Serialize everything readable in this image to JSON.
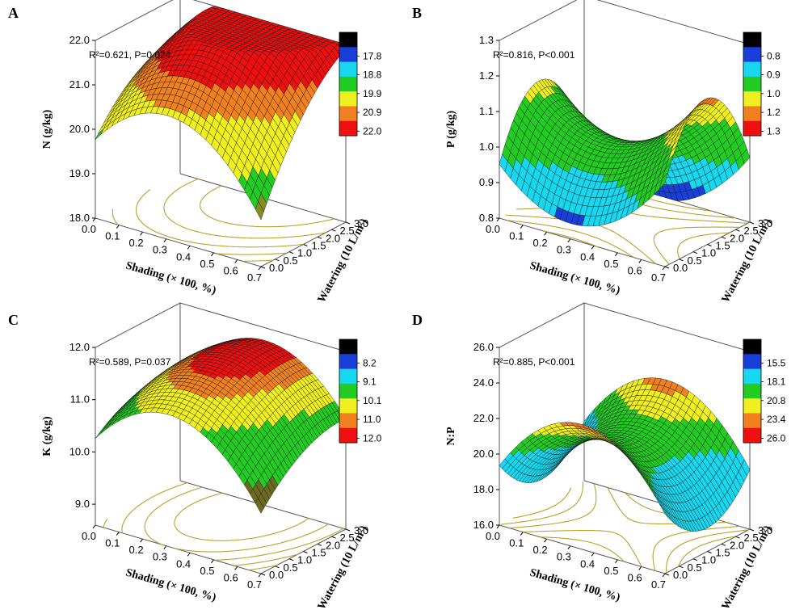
{
  "chart_data": [
    {
      "panel": "A",
      "type": "surface3d",
      "title": "",
      "stat": "R²=0.621,  P=0.024",
      "zlabel": "N (g/kg)",
      "xlabel": "Shading (× 100, %)",
      "ylabel": "Watering (10 L/m²)",
      "xlim": [
        0,
        0.7
      ],
      "ylim": [
        0,
        3
      ],
      "zlim": [
        18.0,
        22.0
      ],
      "zticks": [
        "18.0",
        "19.0",
        "20.0",
        "21.0",
        "22.0"
      ],
      "xticks": [
        "0.0",
        "0.1",
        "0.2",
        "0.3",
        "0.4",
        "0.5",
        "0.6",
        "0.7"
      ],
      "yticks": [
        "0.0",
        "0.5",
        "1.0",
        "1.5",
        "2.0",
        "2.5",
        "3.0"
      ],
      "legend_ticks": [
        "17.8",
        "18.8",
        "19.9",
        "20.9",
        "22.0"
      ],
      "legend_colors": [
        "#000000",
        "#1a3fd8",
        "#18d8f0",
        "#22cc22",
        "#f0f020",
        "#f08020",
        "#ee1010"
      ],
      "surface": {
        "c": 21.6,
        "bx": 0,
        "by": 0.45,
        "ax": -11,
        "ay": -0.2,
        "axy": 0.8,
        "x0": 0.38,
        "y0": 2.1
      },
      "surface_colors": [
        "#6b6b20",
        "#8a8a22",
        "#22cc22",
        "#f0f020",
        "#f08020",
        "#ee1010"
      ],
      "surface_breaks": [
        18.8,
        19.4,
        19.9,
        20.9,
        21.4
      ],
      "contour_color": "#b8a02a"
    },
    {
      "panel": "B",
      "type": "surface3d",
      "title": "",
      "stat": "R²=0.816,  P<0.001",
      "zlabel": "P (g/kg)",
      "xlabel": "Shading (× 100, %)",
      "ylabel": "Watering (10 L/m²)",
      "xlim": [
        0,
        0.7
      ],
      "ylim": [
        0,
        3
      ],
      "zlim": [
        0.8,
        1.3
      ],
      "zticks": [
        "0.8",
        "0.9",
        "1.0",
        "1.1",
        "1.2",
        "1.3"
      ],
      "xticks": [
        "0.0",
        "0.1",
        "0.2",
        "0.3",
        "0.4",
        "0.5",
        "0.6",
        "0.7"
      ],
      "yticks": [
        "0.0",
        "0.5",
        "1.0",
        "1.5",
        "2.0",
        "2.5",
        "3.0"
      ],
      "legend_ticks": [
        "0.8",
        "0.9",
        "1.0",
        "1.2",
        "1.3"
      ],
      "legend_colors": [
        "#000000",
        "#1a3fd8",
        "#18d8f0",
        "#22cc22",
        "#f0f020",
        "#f08020",
        "#ee1010"
      ],
      "surface": {
        "c": 1.02,
        "bx": 0,
        "by": 0,
        "ax": 1.2,
        "ay": -0.09,
        "axy": 0,
        "x0": 0.3,
        "y0": 1.4
      },
      "surface_colors": [
        "#1a3fd8",
        "#18d8f0",
        "#22cc22",
        "#f0f020",
        "#f08020",
        "#ee1010"
      ],
      "surface_breaks": [
        0.86,
        0.96,
        1.1,
        1.18,
        1.24
      ],
      "low_color": "#6b6b20",
      "contour_color": "#b8a02a"
    },
    {
      "panel": "C",
      "type": "surface3d",
      "title": "",
      "stat": "R²=0.589,  P=0.037",
      "zlabel": "K (g/kg)",
      "xlabel": "Shading (× 100, %)",
      "ylabel": "Watering (10 L/m²)",
      "xlim": [
        0,
        0.7
      ],
      "ylim": [
        0,
        3
      ],
      "zlim": [
        8.6,
        12.0
      ],
      "zticks": [
        "9.0",
        "10.0",
        "11.0",
        "12.0"
      ],
      "xticks": [
        "0.0",
        "0.1",
        "0.2",
        "0.3",
        "0.4",
        "0.5",
        "0.6",
        "0.7"
      ],
      "yticks": [
        "0.0",
        "0.5",
        "1.0",
        "1.5",
        "2.0",
        "2.5",
        "3.0"
      ],
      "legend_ticks": [
        "8.2",
        "9.1",
        "10.1",
        "11.0",
        "12.0"
      ],
      "legend_colors": [
        "#000000",
        "#1a3fd8",
        "#18d8f0",
        "#22cc22",
        "#f0f020",
        "#f08020",
        "#ee1010"
      ],
      "surface": {
        "c": 11.8,
        "bx": 0,
        "by": 0,
        "ax": -9,
        "ay": -0.12,
        "axy": 0.3,
        "x0": 0.35,
        "y0": 2.4
      },
      "surface_colors": [
        "#6b6b20",
        "#6b6b20",
        "#22cc22",
        "#f0f020",
        "#f08020",
        "#ee1010"
      ],
      "surface_breaks": [
        10.0,
        10.2,
        11.0,
        11.4,
        11.6
      ],
      "contour_color": "#b8a02a"
    },
    {
      "panel": "D",
      "type": "surface3d",
      "title": "",
      "stat": "R²=0.885,  P<0.001",
      "zlabel": "N:P",
      "xlabel": "Shading (× 100, %)",
      "ylabel": "Watering (10 L/m²)",
      "xlim": [
        0,
        0.7
      ],
      "ylim": [
        0,
        3
      ],
      "zlim": [
        16.0,
        26.0
      ],
      "zticks": [
        "16.0",
        "18.0",
        "20.0",
        "22.0",
        "24.0",
        "26.0"
      ],
      "xticks": [
        "0.0",
        "0.1",
        "0.2",
        "0.3",
        "0.4",
        "0.5",
        "0.6",
        "0.7"
      ],
      "yticks": [
        "0.0",
        "0.5",
        "1.0",
        "1.5",
        "2.0",
        "2.5",
        "3.0"
      ],
      "legend_ticks": [
        "15.5",
        "18.1",
        "20.8",
        "23.4",
        "26.0"
      ],
      "legend_colors": [
        "#000000",
        "#1a3fd8",
        "#18d8f0",
        "#22cc22",
        "#f0f020",
        "#f08020",
        "#ee1010"
      ],
      "surface": {
        "c": 21.0,
        "bx": 0,
        "by": 0,
        "ax": -30,
        "ay": 0.9,
        "axy": 0,
        "x0": 0.35,
        "y0": 1.5
      },
      "surface_colors": [
        "#18d8f0",
        "#22cc22",
        "#f0f020",
        "#f08020",
        "#ee1010",
        "#6b6b20"
      ],
      "surface_breaks": [
        20.2,
        21.6,
        22.6,
        23.2,
        23.6
      ],
      "contour_color": "#b8a02a"
    }
  ]
}
